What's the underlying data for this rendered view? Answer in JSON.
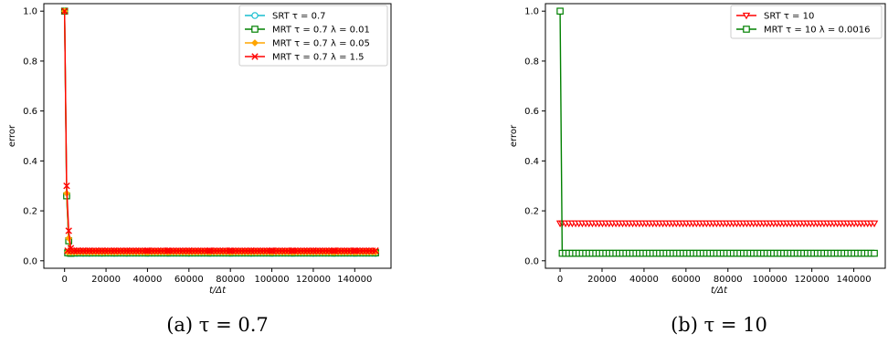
{
  "chart_data": [
    {
      "type": "line",
      "caption": "(a) τ = 0.7",
      "xlabel": "t/Δt",
      "ylabel": "error",
      "xlim": [
        -10000,
        157500
      ],
      "ylim": [
        -0.03,
        1.03
      ],
      "xticks": [
        0,
        20000,
        40000,
        60000,
        80000,
        100000,
        120000,
        140000
      ],
      "yticks": [
        0.0,
        0.2,
        0.4,
        0.6,
        0.8,
        1.0
      ],
      "legend_position": "top-right",
      "grid": false,
      "series": [
        {
          "name": "SRT τ = 0.7",
          "color": "#17becf",
          "marker": "circle-open",
          "x": [
            0,
            1000,
            2000,
            3000,
            4500,
            6000,
            9000,
            12000,
            18000,
            24000,
            30000,
            40000,
            50000,
            60000,
            70000,
            80000,
            90000,
            100000,
            110000,
            120000,
            130000,
            140000,
            150000
          ],
          "y": [
            1.0,
            0.26,
            0.08,
            0.03,
            0.03,
            0.03,
            0.03,
            0.03,
            0.03,
            0.03,
            0.03,
            0.03,
            0.03,
            0.03,
            0.03,
            0.03,
            0.03,
            0.03,
            0.03,
            0.03,
            0.03,
            0.03,
            0.03
          ]
        },
        {
          "name": "MRT τ = 0.7   λ = 0.01",
          "color": "#008000",
          "marker": "square-open",
          "x": [
            0,
            1000,
            2000,
            3000,
            4500,
            6000,
            9000,
            12000,
            18000,
            24000,
            30000,
            40000,
            50000,
            60000,
            70000,
            80000,
            90000,
            100000,
            110000,
            120000,
            130000,
            140000,
            150000
          ],
          "y": [
            1.0,
            0.26,
            0.08,
            0.03,
            0.032,
            0.032,
            0.032,
            0.032,
            0.032,
            0.032,
            0.032,
            0.032,
            0.032,
            0.032,
            0.032,
            0.032,
            0.032,
            0.032,
            0.032,
            0.032,
            0.032,
            0.032,
            0.032
          ]
        },
        {
          "name": "MRT τ = 0.7   λ = 0.05",
          "color": "#ffa500",
          "marker": "diamond",
          "x": [
            0,
            1000,
            2000,
            3000,
            4500,
            6000,
            9000,
            12000,
            18000,
            24000,
            30000,
            40000,
            50000,
            60000,
            70000,
            80000,
            90000,
            100000,
            110000,
            120000,
            130000,
            140000,
            150000
          ],
          "y": [
            1.0,
            0.27,
            0.09,
            0.035,
            0.035,
            0.035,
            0.035,
            0.035,
            0.035,
            0.035,
            0.035,
            0.035,
            0.035,
            0.035,
            0.035,
            0.035,
            0.035,
            0.035,
            0.035,
            0.035,
            0.035,
            0.035,
            0.035
          ]
        },
        {
          "name": "MRT τ = 0.7   λ = 1.5",
          "color": "#ff0000",
          "marker": "x",
          "x": [
            0,
            1000,
            2000,
            3000,
            4500,
            6000,
            9000,
            12000,
            18000,
            24000,
            30000,
            40000,
            50000,
            60000,
            70000,
            80000,
            90000,
            100000,
            110000,
            120000,
            130000,
            140000,
            150000
          ],
          "y": [
            1.0,
            0.3,
            0.12,
            0.05,
            0.04,
            0.04,
            0.04,
            0.04,
            0.04,
            0.04,
            0.04,
            0.04,
            0.04,
            0.04,
            0.04,
            0.04,
            0.04,
            0.04,
            0.04,
            0.04,
            0.04,
            0.04,
            0.04
          ]
        }
      ]
    },
    {
      "type": "line",
      "caption": "(b) τ = 10",
      "xlabel": "t/Δt",
      "ylabel": "error",
      "xlim": [
        -7000,
        155000
      ],
      "ylim": [
        -0.03,
        1.03
      ],
      "xticks": [
        0,
        20000,
        40000,
        60000,
        80000,
        100000,
        120000,
        140000
      ],
      "yticks": [
        0.0,
        0.2,
        0.4,
        0.6,
        0.8,
        1.0
      ],
      "legend_position": "top-right",
      "grid": false,
      "series": [
        {
          "name": "SRT τ = 10",
          "color": "#ff0000",
          "marker": "triangle-down-open",
          "x": [
            0,
            1000,
            4000,
            8000,
            150000
          ],
          "y": [
            0.15,
            0.15,
            0.15,
            0.15,
            0.15
          ]
        },
        {
          "name": "MRT τ = 10   λ = 0.0016",
          "color": "#008000",
          "marker": "square-open",
          "x": [
            0,
            1000,
            4000,
            8000,
            150000
          ],
          "y": [
            1.0,
            0.03,
            0.03,
            0.03,
            0.03
          ]
        }
      ]
    }
  ]
}
